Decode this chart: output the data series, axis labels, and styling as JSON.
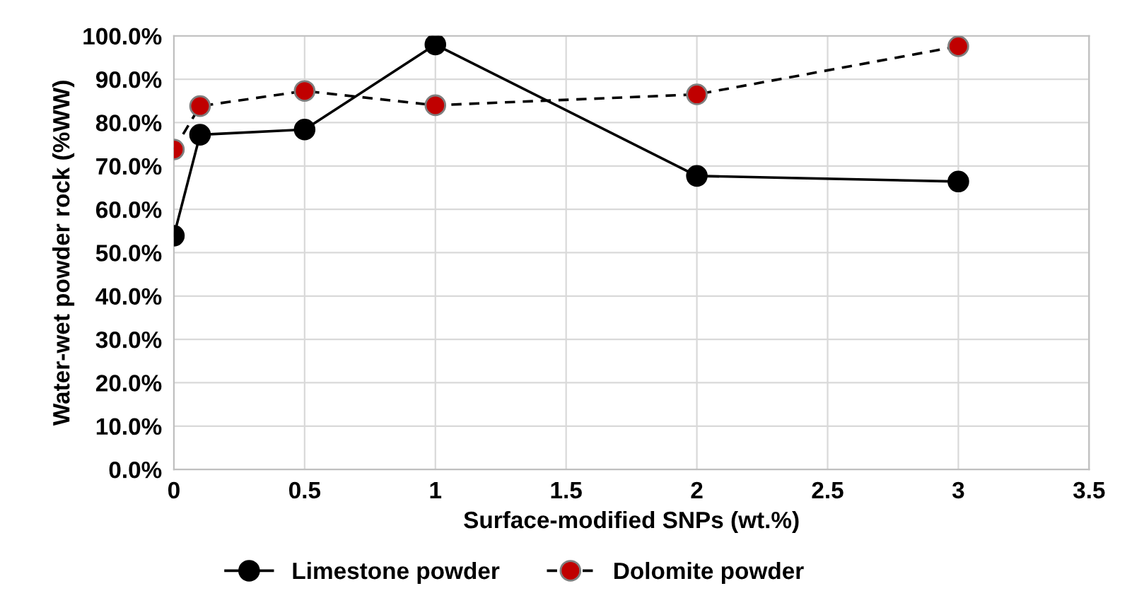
{
  "chart_data": {
    "type": "line",
    "xlabel": "Surface-modified SNPs (wt.%)",
    "ylabel": "Water-wet powder rock (%WW)",
    "x": [
      0,
      0.1,
      0.5,
      1,
      2,
      3
    ],
    "series": [
      {
        "name": "Limestone powder",
        "color": "#000000",
        "values": [
          53.9,
          77.2,
          78.4,
          98.0,
          67.7,
          66.4
        ],
        "line_style": "solid",
        "marker": "circle"
      },
      {
        "name": "Dolomite powder",
        "color": "#c00000",
        "values": [
          73.8,
          83.8,
          87.3,
          84.0,
          86.5,
          97.6
        ],
        "line_style": "dashed",
        "marker": "circle"
      }
    ],
    "xlim": [
      0,
      3.5
    ],
    "xticks": [
      0,
      {
        "value": 0.5,
        "label": "0.5"
      },
      1,
      {
        "value": 1.5,
        "label": "1.5"
      },
      2,
      {
        "value": 2.5,
        "label": "2.5"
      },
      3,
      {
        "value": 3.5,
        "label": "3.5"
      }
    ],
    "ylim": [
      0,
      100
    ],
    "yticks": [
      {
        "value": 0,
        "label": "0.0%"
      },
      {
        "value": 10,
        "label": "10.0%"
      },
      {
        "value": 20,
        "label": "20.0%"
      },
      {
        "value": 30,
        "label": "30.0%"
      },
      {
        "value": 40,
        "label": "40.0%"
      },
      {
        "value": 50,
        "label": "50.0%"
      },
      {
        "value": 60,
        "label": "60.0%"
      },
      {
        "value": 70,
        "label": "70.0%"
      },
      {
        "value": 80,
        "label": "80.0%"
      },
      {
        "value": 90,
        "label": "90.0%"
      },
      {
        "value": 100,
        "label": "100.0%"
      }
    ],
    "grid": true,
    "legend": "bottom"
  }
}
